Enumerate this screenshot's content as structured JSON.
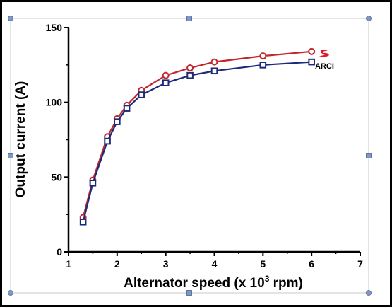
{
  "chart_data": {
    "type": "line",
    "title": "",
    "xlabel_parts": {
      "before": "Alternator speed (x 10",
      "sup": "3",
      "after": " rpm)"
    },
    "ylabel": "Output current (A)",
    "xlim": [
      1,
      7
    ],
    "ylim": [
      0,
      150
    ],
    "xticks": [
      "1",
      "2",
      "3",
      "4",
      "5",
      "6",
      "7"
    ],
    "yticks": [
      "0",
      "50",
      "100",
      "150"
    ],
    "grid": false,
    "legend_position": "right-end-of-lines",
    "series": [
      {
        "name": "",
        "color": "#c0282d",
        "marker": "circle",
        "x": [
          1.3,
          1.5,
          1.8,
          2.0,
          2.2,
          2.5,
          3.0,
          3.5,
          4.0,
          5.0,
          6.0
        ],
        "y": [
          23,
          48,
          77,
          89,
          98,
          108,
          118,
          123,
          127,
          131,
          134
        ]
      },
      {
        "name": "ARCI",
        "color": "#1d2a7a",
        "marker": "square",
        "x": [
          1.3,
          1.5,
          1.8,
          2.0,
          2.2,
          2.5,
          3.0,
          3.5,
          4.0,
          5.0,
          6.0
        ],
        "y": [
          20,
          46,
          74,
          87,
          96,
          105,
          113,
          118,
          121,
          125,
          127
        ]
      }
    ],
    "decoration_color": "#7f97c8"
  }
}
